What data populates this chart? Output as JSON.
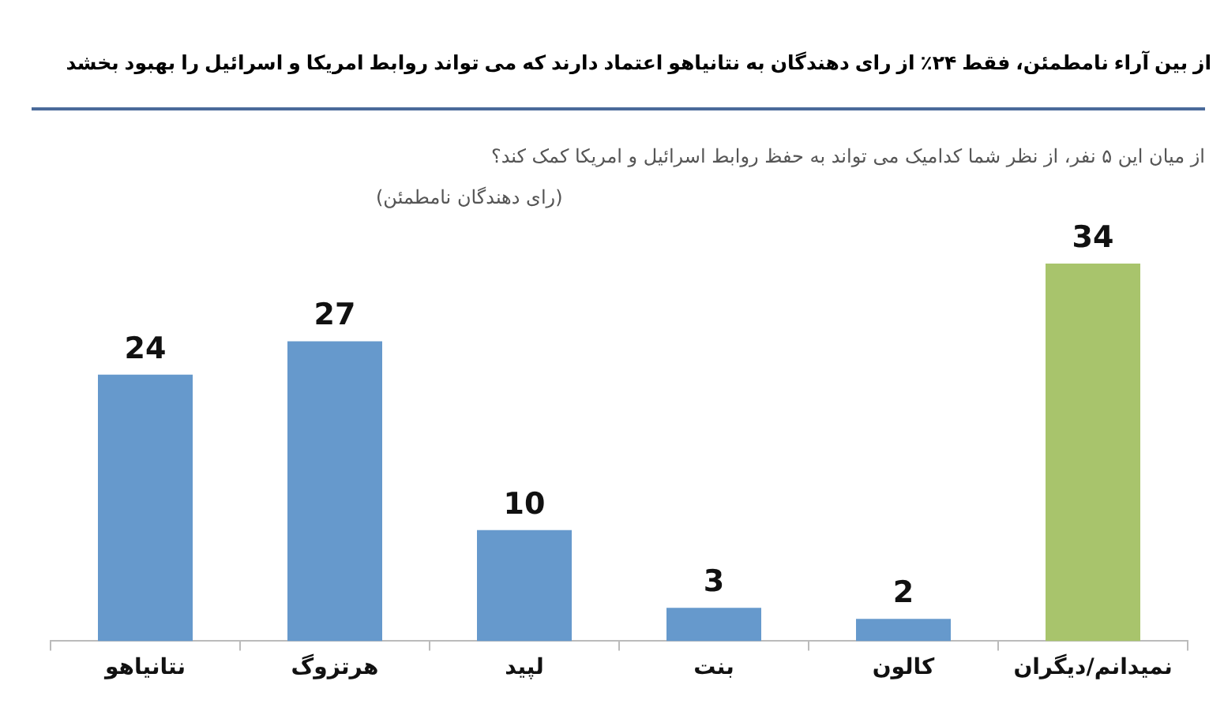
{
  "chart_data": {
    "type": "bar",
    "title": "از بین آراء نامطمئن، فقط ۲۴٪ از رای دهندگان به نتانیاهو اعتماد دارند که می تواند روابط امریکا و اسرائیل را بهبود بخشد",
    "subtitle": "از میان این ۵ نفر، از نظر شما کدامیک می تواند به حفظ روابط اسرائیل و امریکا کمک کند؟",
    "annotations": [
      "(رای دهندگان نامطمئن)"
    ],
    "categories": [
      "نتانیاهو",
      "هرتزوگ",
      "لپید",
      "بنت",
      "کالون",
      "نمیدانم/دیگران"
    ],
    "values": [
      24,
      27,
      10,
      3,
      2,
      34
    ],
    "colors": [
      "#6699cc",
      "#6699cc",
      "#6699cc",
      "#6699cc",
      "#6699cc",
      "#a8c46c"
    ],
    "data_labels": true,
    "legend": false
  }
}
